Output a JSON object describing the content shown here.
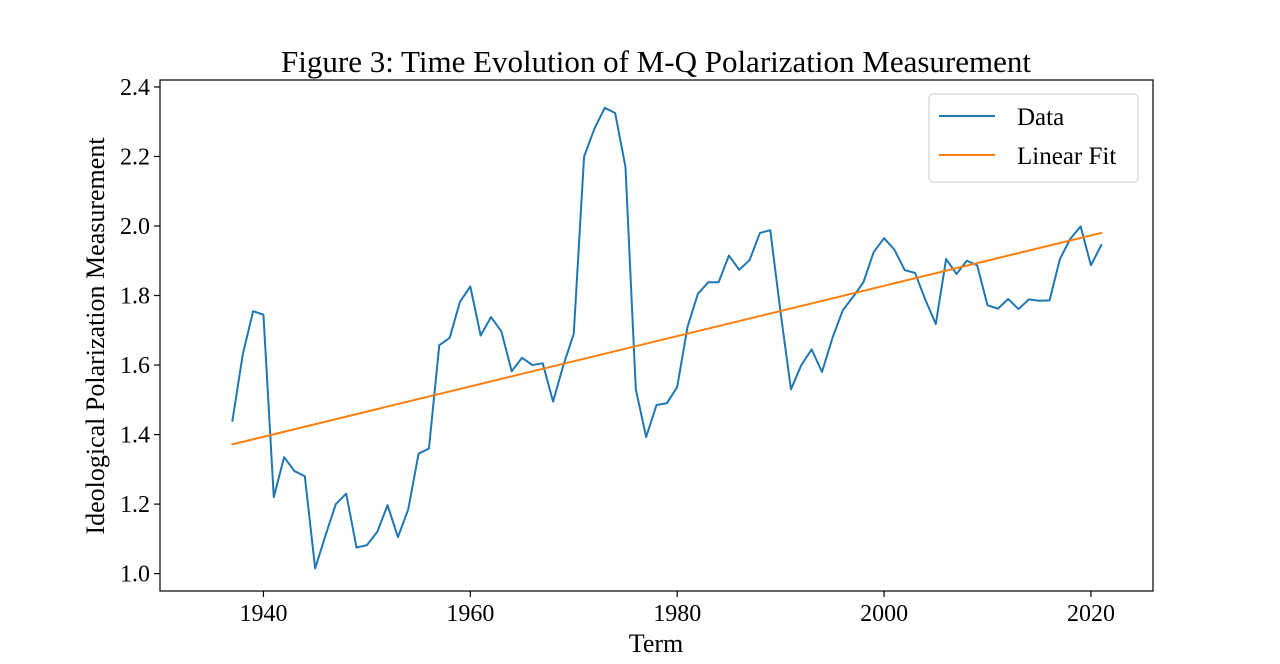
{
  "chart_data": {
    "type": "line",
    "title": "Figure 3: Time Evolution of M-Q Polarization Measurement",
    "xlabel": "Term",
    "ylabel": "Ideological Polarization Measurement",
    "xlim": [
      1930,
      2026
    ],
    "ylim": [
      0.95,
      2.42
    ],
    "xticks": [
      1940,
      1960,
      1980,
      2000,
      2020
    ],
    "xtick_labels": [
      "1940",
      "1960",
      "1980",
      "2000",
      "2020"
    ],
    "yticks": [
      1.0,
      1.2,
      1.4,
      1.6,
      1.8,
      2.0,
      2.2,
      2.4
    ],
    "ytick_labels": [
      "1.0",
      "1.2",
      "1.4",
      "1.6",
      "1.8",
      "2.0",
      "2.2",
      "2.4"
    ],
    "grid": false,
    "legend_position": "top-right",
    "series": [
      {
        "name": "Data",
        "color": "#1f77b4",
        "x": [
          1937,
          1938,
          1939,
          1940,
          1941,
          1942,
          1943,
          1944,
          1945,
          1946,
          1947,
          1948,
          1949,
          1950,
          1951,
          1952,
          1953,
          1954,
          1955,
          1956,
          1957,
          1958,
          1959,
          1960,
          1961,
          1962,
          1963,
          1964,
          1965,
          1966,
          1967,
          1968,
          1969,
          1970,
          1971,
          1972,
          1973,
          1974,
          1975,
          1976,
          1977,
          1978,
          1979,
          1980,
          1981,
          1982,
          1983,
          1984,
          1985,
          1986,
          1987,
          1988,
          1989,
          1990,
          1991,
          1992,
          1993,
          1994,
          1995,
          1996,
          1997,
          1998,
          1999,
          2000,
          2001,
          2002,
          2003,
          2004,
          2005,
          2006,
          2007,
          2008,
          2009,
          2010,
          2011,
          2012,
          2013,
          2014,
          2015,
          2016,
          2017,
          2018,
          2019,
          2020,
          2021
        ],
        "y": [
          1.44,
          1.63,
          1.755,
          1.745,
          1.22,
          1.335,
          1.295,
          1.28,
          1.015,
          1.11,
          1.2,
          1.23,
          1.075,
          1.082,
          1.12,
          1.197,
          1.105,
          1.185,
          1.345,
          1.36,
          1.657,
          1.678,
          1.782,
          1.826,
          1.685,
          1.738,
          1.697,
          1.582,
          1.621,
          1.6,
          1.605,
          1.495,
          1.6,
          1.69,
          2.2,
          2.28,
          2.34,
          2.325,
          2.17,
          1.53,
          1.393,
          1.485,
          1.49,
          1.537,
          1.71,
          1.805,
          1.838,
          1.838,
          1.915,
          1.874,
          1.902,
          1.98,
          1.988,
          1.75,
          1.53,
          1.6,
          1.645,
          1.58,
          1.677,
          1.757,
          1.796,
          1.838,
          1.925,
          1.965,
          1.932,
          1.873,
          1.865,
          1.787,
          1.718,
          1.905,
          1.862,
          1.9,
          1.887,
          1.772,
          1.762,
          1.79,
          1.761,
          1.789,
          1.785,
          1.786,
          1.905,
          1.963,
          1.999,
          1.887,
          1.945
        ]
      },
      {
        "name": "Linear Fit",
        "color": "#ff7f0e",
        "x": [
          1937,
          2021
        ],
        "y": [
          1.372,
          1.98
        ]
      }
    ]
  }
}
